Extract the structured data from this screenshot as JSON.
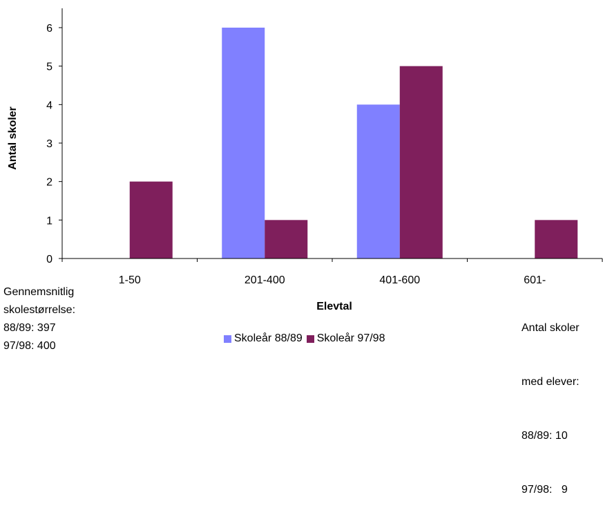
{
  "chart_data": {
    "type": "bar",
    "categories": [
      "1-50",
      "201-400",
      "401-600",
      "601-"
    ],
    "series": [
      {
        "name": "Skoleår 88/89",
        "values": [
          0,
          6,
          4,
          0
        ],
        "color": "#8080ff"
      },
      {
        "name": "Skoleår 97/98",
        "values": [
          2,
          1,
          5,
          1
        ],
        "color": "#7f1f5c"
      }
    ],
    "xlabel": "Elevtal",
    "ylabel": "Antal skoler",
    "ylim": [
      0,
      6
    ],
    "yticks": [
      0,
      1,
      2,
      3,
      4,
      5,
      6
    ],
    "grid": false,
    "legend": "bottom"
  },
  "notes": {
    "left": {
      "line1": "Gennemsnitlig",
      "line2": "skolestørrelse:",
      "line3": "88/89: 397",
      "line4": "97/98: 400"
    },
    "right": {
      "line1": "Antal skoler",
      "line2": "med elever:",
      "line3": "88/89: 10",
      "line4": "97/98:   9"
    }
  }
}
